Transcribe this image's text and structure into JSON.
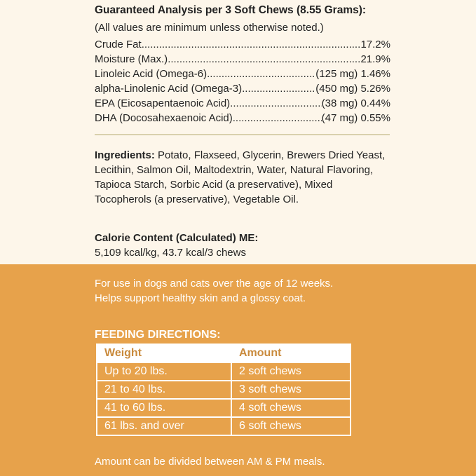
{
  "analysis": {
    "title": "Guaranteed Analysis per 3 Soft Chews (8.55 Grams):",
    "note": "(All values are minimum unless otherwise noted.)",
    "rows": [
      {
        "label": "Crude Fat",
        "value": "17.2%"
      },
      {
        "label": "Moisture (Max.)",
        "value": "21.9%"
      },
      {
        "label": "Linoleic Acid (Omega-6)",
        "value": "(125 mg) 1.46%"
      },
      {
        "label": "alpha-Linolenic Acid (Omega-3)",
        "value": "(450 mg) 5.26%"
      },
      {
        "label": "EPA (Eicosapentaenoic Acid)",
        "value": "(38 mg) 0.44%"
      },
      {
        "label": "DHA (Docosahexaenoic Acid)",
        "value": "(47 mg) 0.55%"
      }
    ]
  },
  "ingredients": {
    "label": "Ingredients:",
    "text": " Potato, Flaxseed, Glycerin, Brewers Dried Yeast, Lecithin, Salmon Oil, Maltodextrin, Water, Natural Flavoring, Tapioca Starch, Sorbic Acid (a preservative), Mixed Tocopherols (a preservative), Vegetable Oil."
  },
  "calorie": {
    "label": "Calorie Content (Calculated) ME:",
    "value": "5,109 kcal/kg, 43.7 kcal/3 chews"
  },
  "usage": {
    "line1": "For use in dogs and cats over the age of 12 weeks.",
    "line2": "Helps support healthy skin and a glossy coat."
  },
  "feeding": {
    "title": "FEEDING DIRECTIONS:",
    "headers": [
      "Weight",
      "Amount"
    ],
    "rows": [
      [
        "Up to 20 lbs.",
        "2 soft chews"
      ],
      [
        "21 to 40 lbs.",
        "3 soft chews"
      ],
      [
        "41 to 60 lbs.",
        "4 soft chews"
      ],
      [
        "61 lbs. and over",
        "6 soft chews"
      ]
    ],
    "note": "Amount can be divided between AM & PM meals."
  },
  "colors": {
    "cream": "#fdf6ea",
    "orange": "#e7a24b"
  }
}
